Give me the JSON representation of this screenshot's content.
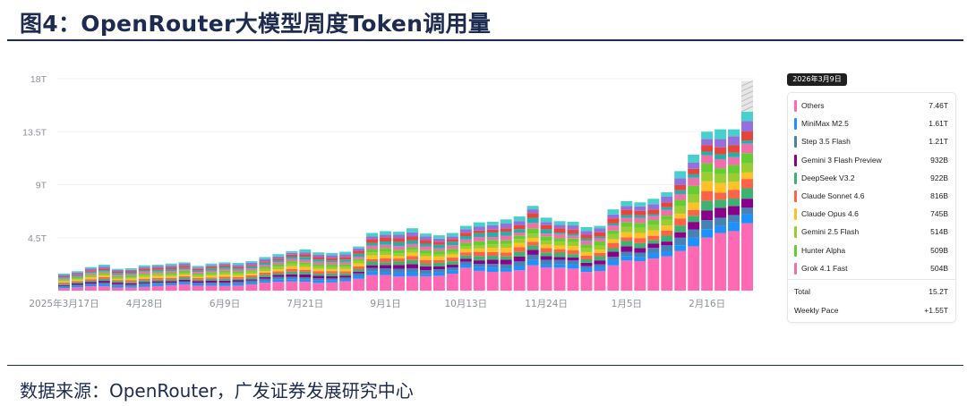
{
  "figure": {
    "title": "图4：OpenRouter大模型周度Token调用量",
    "source": "数据来源：OpenRouter，广发证券发展研究中心"
  },
  "tooltip": {
    "date": "2026年3月9日",
    "items": [
      {
        "label": "Others",
        "value": "7.46T",
        "color": "#ff69b4"
      },
      {
        "label": "MiniMax M2.5",
        "value": "1.61T",
        "color": "#1e90ff"
      },
      {
        "label": "Step 3.5 Flash",
        "value": "1.21T",
        "color": "#4682b4"
      },
      {
        "label": "Gemini 3 Flash Preview",
        "value": "932B",
        "color": "#8b008b"
      },
      {
        "label": "DeepSeek V3.2",
        "value": "922B",
        "color": "#3cb371"
      },
      {
        "label": "Claude Sonnet 4.6",
        "value": "816B",
        "color": "#ff6347"
      },
      {
        "label": "Claude Opus 4.6",
        "value": "745B",
        "color": "#ffc125"
      },
      {
        "label": "Gemini 2.5 Flash",
        "value": "514B",
        "color": "#9acd32"
      },
      {
        "label": "Hunter Alpha",
        "value": "509B",
        "color": "#66cc33"
      },
      {
        "label": "Grok 4.1 Fast",
        "value": "504B",
        "color": "#f06eaa"
      }
    ],
    "total_label": "Total",
    "total_value": "15.2T",
    "pace_label": "Weekly Pace",
    "pace_value": "+1.55T"
  },
  "chart_data": {
    "type": "bar",
    "stacked": true,
    "unit": "T tokens per week",
    "y_ticks": [
      {
        "value": 4.5,
        "label": "4.5T"
      },
      {
        "value": 9,
        "label": "9T"
      },
      {
        "value": 13.5,
        "label": "13.5T"
      },
      {
        "value": 18,
        "label": "18T"
      }
    ],
    "ylim": [
      0,
      18
    ],
    "x_tick_labels": [
      {
        "index": 0,
        "label": "2025年3月17日"
      },
      {
        "index": 6,
        "label": "4月28日"
      },
      {
        "index": 12,
        "label": "6月9日"
      },
      {
        "index": 18,
        "label": "7月21日"
      },
      {
        "index": 24,
        "label": "9月1日"
      },
      {
        "index": 30,
        "label": "10月13日"
      },
      {
        "index": 36,
        "label": "11月24日"
      },
      {
        "index": 42,
        "label": "1月5日"
      },
      {
        "index": 48,
        "label": "2月16日"
      }
    ],
    "totals": [
      1.45,
      1.65,
      2.0,
      2.2,
      1.85,
      1.9,
      2.15,
      2.2,
      2.3,
      2.4,
      2.1,
      2.3,
      2.4,
      2.35,
      2.5,
      2.85,
      3.1,
      3.35,
      3.5,
      3.25,
      3.2,
      3.3,
      3.75,
      4.9,
      5.05,
      5.0,
      5.3,
      4.85,
      4.7,
      4.9,
      5.5,
      5.8,
      5.85,
      6.05,
      6.3,
      7.2,
      6.2,
      5.9,
      5.85,
      5.4,
      5.5,
      6.9,
      7.6,
      7.5,
      7.8,
      8.35,
      10.15,
      11.55,
      13.5,
      13.7,
      13.7,
      15.2
    ],
    "highlight_index": 51,
    "highlight_projection": 2.6,
    "series_colors": [
      "#ff69b4",
      "#1e90ff",
      "#4682b4",
      "#8b008b",
      "#3cb371",
      "#ff6347",
      "#ffc125",
      "#9acd32",
      "#66cc33",
      "#f06eaa",
      "#20b2aa",
      "#e8443a",
      "#9370db",
      "#48d1cc"
    ]
  }
}
